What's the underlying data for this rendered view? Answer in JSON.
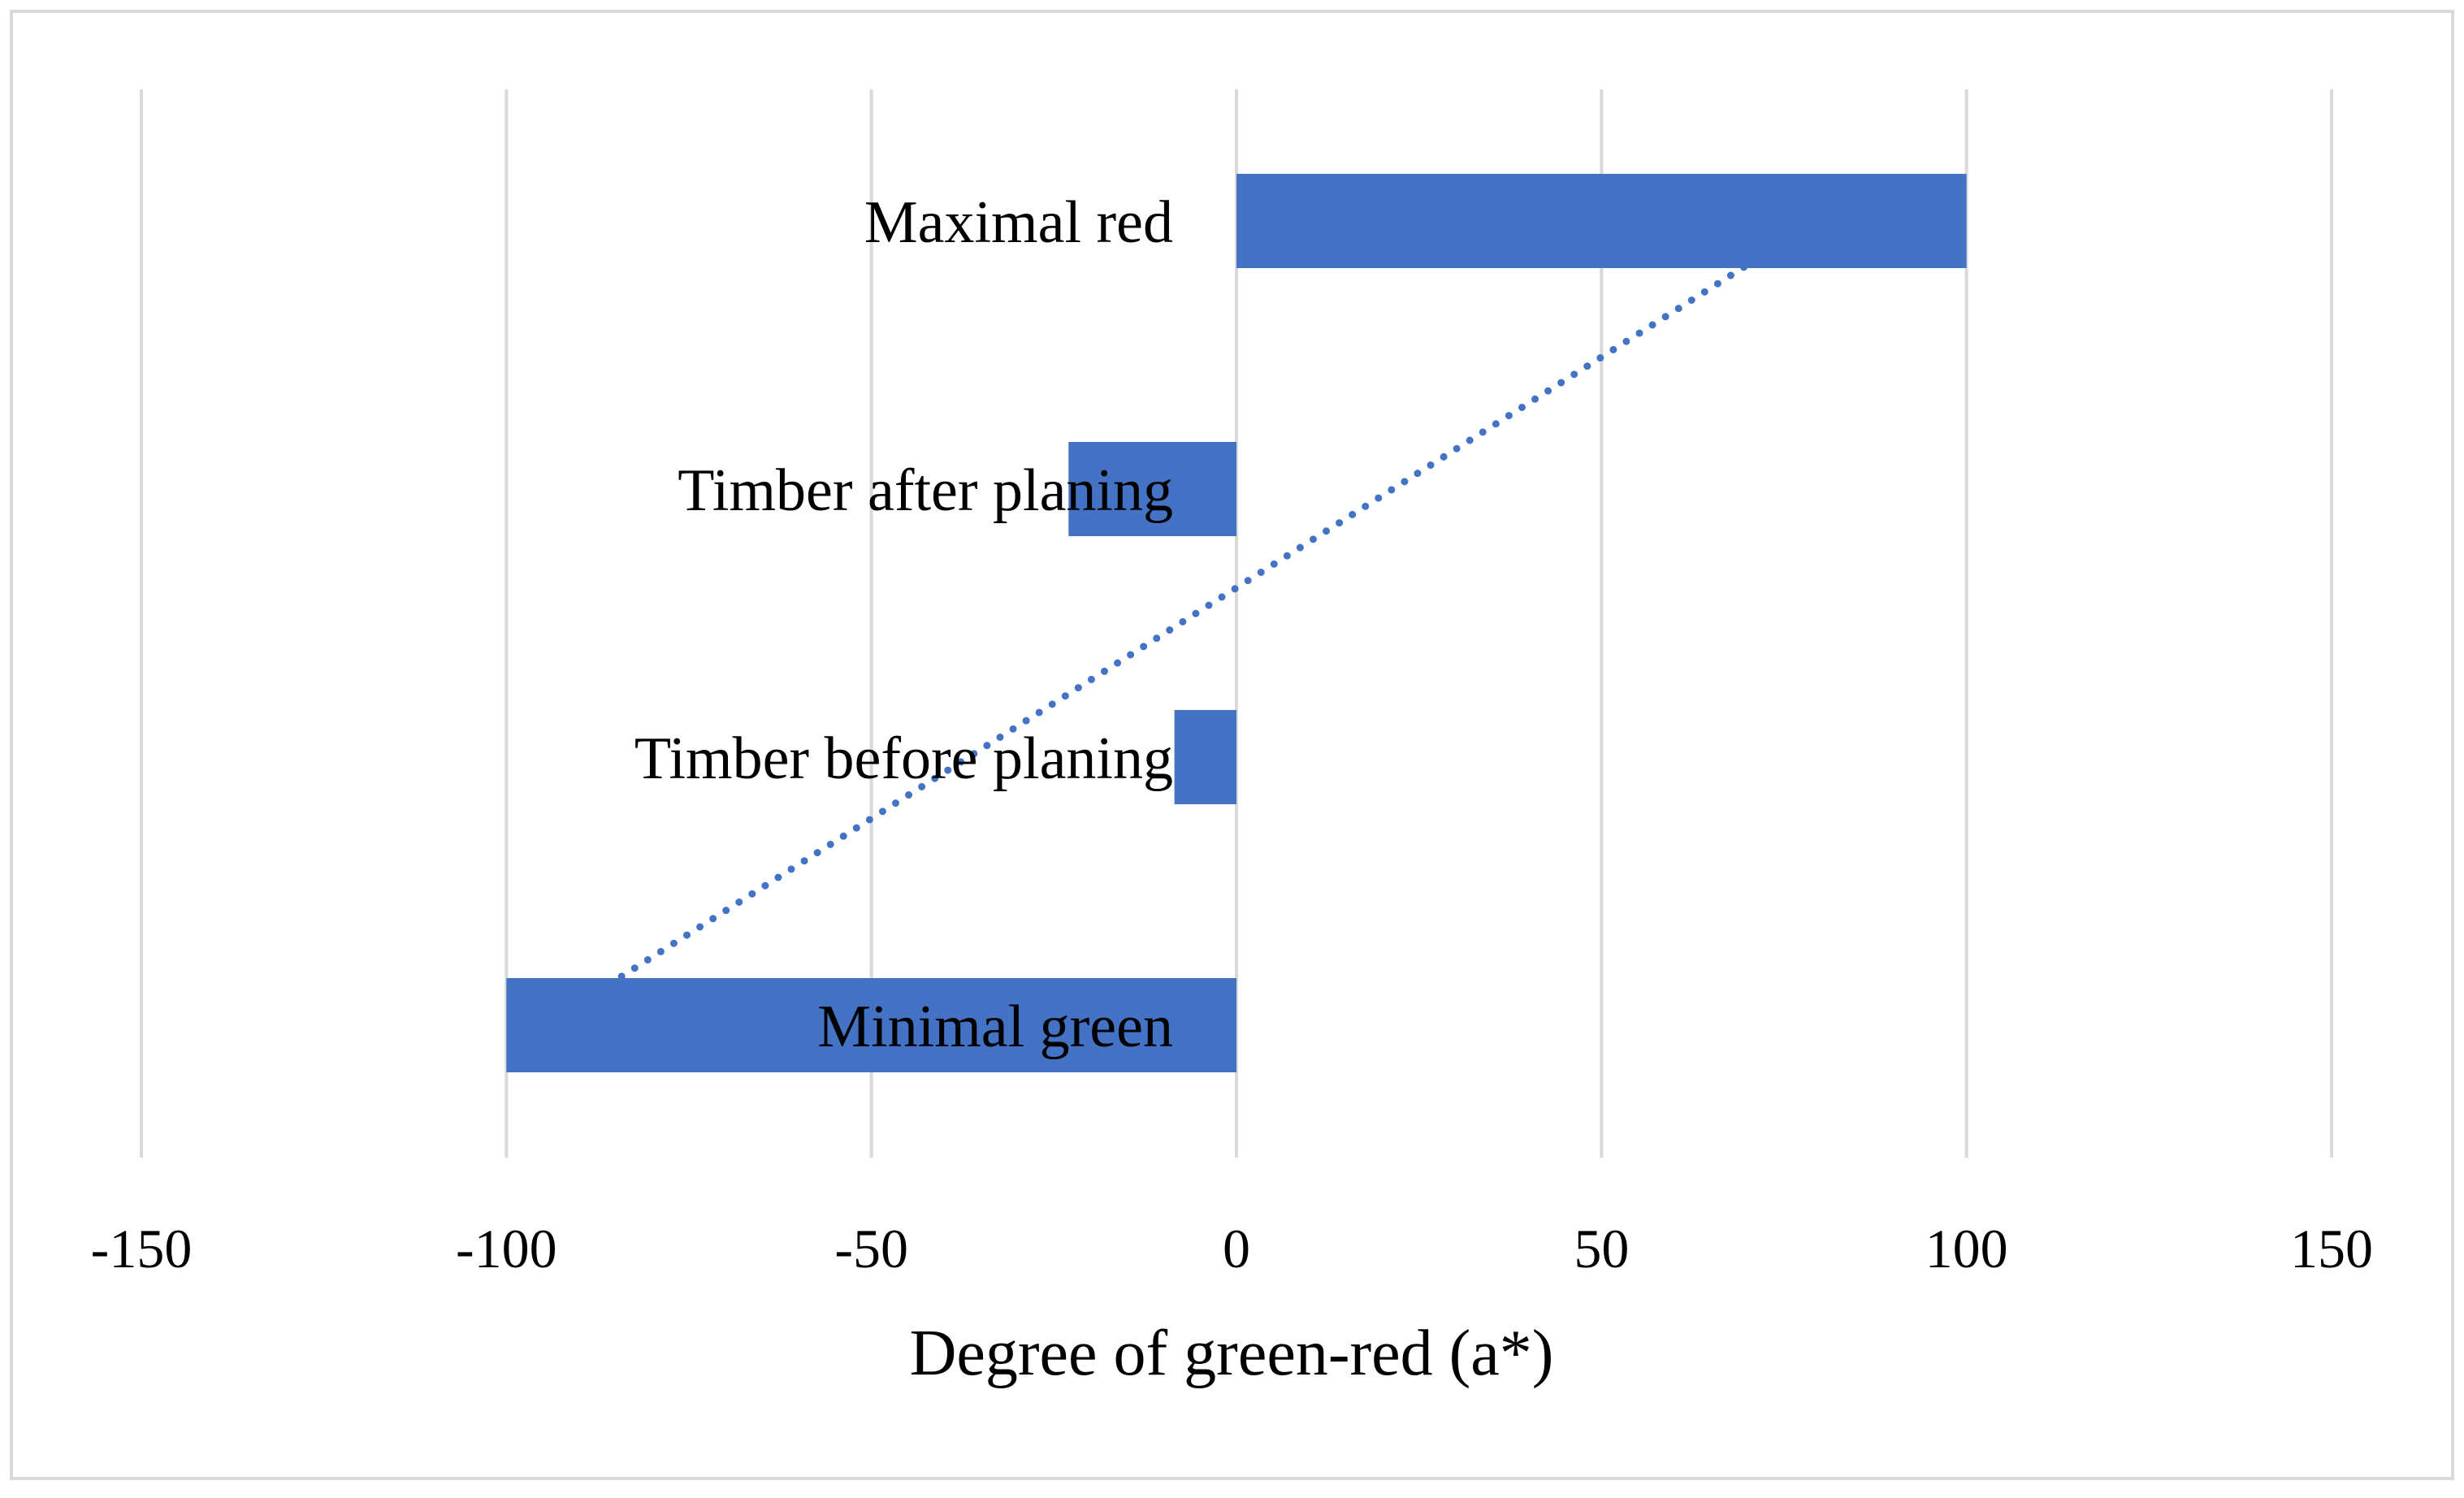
{
  "chart_data": {
    "type": "bar",
    "orientation": "horizontal",
    "title": "",
    "xlabel": "Degree of green-red (a*)",
    "ylabel": "",
    "xlim": [
      -150,
      150
    ],
    "xticks": [
      -150,
      -100,
      -50,
      0,
      50,
      100,
      150
    ],
    "xtick_labels": [
      "-150",
      "-100",
      "-50",
      "0",
      "50",
      "100",
      "150"
    ],
    "grid": true,
    "legend": "none",
    "categories": [
      "Maximal red",
      "Timber after planing",
      "Timber before planing",
      "Minimal green"
    ],
    "values": [
      100,
      -23,
      -8.5,
      -100
    ],
    "trendline": {
      "type": "linear",
      "style": "dotted",
      "from_value": -86,
      "to_value": 70
    },
    "colors": {
      "bar": "#4472C4",
      "grid": "#D9D9D9",
      "frame": "#D9D9D9",
      "text": "#000000"
    }
  }
}
